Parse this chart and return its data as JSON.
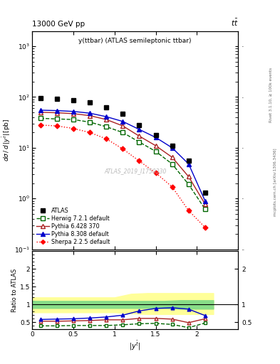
{
  "title_top": "13000 GeV pp",
  "title_right": "tt͟",
  "annotation": "y(ttbar) (ATLAS semileptonic ttbar)",
  "watermark": "ATLAS_2019_I1750330",
  "rivet_label": "Rivet 3.1.10, ≥ 100k events",
  "mcplots_label": "mcplots.cern.ch [arXiv:1306.3436]",
  "xlabel": "|y^{tbar}|",
  "xlim": [
    0.0,
    2.5
  ],
  "ylim_main": [
    0.1,
    2000
  ],
  "ylim_ratio": [
    0.3,
    2.5
  ],
  "atlas_x": [
    0.1,
    0.3,
    0.5,
    0.7,
    0.9,
    1.1,
    1.3,
    1.5,
    1.7,
    1.9,
    2.1
  ],
  "atlas_y": [
    95,
    92,
    87,
    78,
    63,
    47,
    28,
    18,
    11,
    5.5,
    1.3
  ],
  "herwig_x": [
    0.1,
    0.3,
    0.5,
    0.7,
    0.9,
    1.1,
    1.3,
    1.5,
    1.7,
    1.9,
    2.1
  ],
  "herwig_y": [
    38,
    37,
    36,
    32,
    26,
    20,
    13,
    8.5,
    4.8,
    1.9,
    0.62
  ],
  "pythia6_x": [
    0.1,
    0.3,
    0.5,
    0.7,
    0.9,
    1.1,
    1.3,
    1.5,
    1.7,
    1.9,
    2.1
  ],
  "pythia6_y": [
    50,
    49,
    47,
    43,
    36,
    27,
    17,
    11,
    6.5,
    2.7,
    0.78
  ],
  "pythia8_x": [
    0.1,
    0.3,
    0.5,
    0.7,
    0.9,
    1.1,
    1.3,
    1.5,
    1.7,
    1.9,
    2.1
  ],
  "pythia8_y": [
    55,
    54,
    52,
    48,
    41,
    33,
    23,
    16,
    10,
    4.8,
    0.9
  ],
  "sherpa_x": [
    0.1,
    0.3,
    0.5,
    0.7,
    0.9,
    1.1,
    1.3,
    1.5,
    1.7,
    1.9,
    2.1
  ],
  "sherpa_y": [
    28,
    27,
    24,
    20,
    15,
    9.5,
    5.5,
    3.2,
    1.7,
    0.58,
    0.27
  ],
  "ratio_x": [
    0.1,
    0.3,
    0.5,
    0.7,
    0.9,
    1.1,
    1.3,
    1.5,
    1.7,
    1.9,
    2.1
  ],
  "ratio_herwig": [
    0.4,
    0.4,
    0.41,
    0.41,
    0.41,
    0.43,
    0.46,
    0.47,
    0.44,
    0.35,
    0.48
  ],
  "ratio_pythia6": [
    0.53,
    0.53,
    0.54,
    0.55,
    0.57,
    0.57,
    0.61,
    0.61,
    0.59,
    0.49,
    0.6
  ],
  "ratio_pythia8": [
    0.58,
    0.59,
    0.6,
    0.62,
    0.65,
    0.7,
    0.82,
    0.89,
    0.91,
    0.87,
    0.69
  ],
  "band_x": [
    0.0,
    0.2,
    0.4,
    0.6,
    0.8,
    1.0,
    1.2,
    1.4,
    1.6,
    1.8,
    2.0,
    2.2
  ],
  "band_green_hi": [
    1.1,
    1.1,
    1.1,
    1.1,
    1.1,
    1.1,
    1.1,
    1.1,
    1.1,
    1.12,
    1.12,
    1.12
  ],
  "band_green_lo": [
    0.9,
    0.9,
    0.9,
    0.9,
    0.9,
    0.9,
    0.9,
    0.9,
    0.9,
    0.88,
    0.88,
    0.88
  ],
  "band_yellow_hi": [
    1.2,
    1.2,
    1.2,
    1.2,
    1.2,
    1.2,
    1.3,
    1.32,
    1.32,
    1.32,
    1.32,
    1.32
  ],
  "band_yellow_lo": [
    0.78,
    0.78,
    0.78,
    0.78,
    0.78,
    0.78,
    0.75,
    0.73,
    0.73,
    0.73,
    0.73,
    0.73
  ],
  "color_atlas": "#000000",
  "color_herwig": "#006600",
  "color_pythia6": "#aa2222",
  "color_pythia8": "#0000cc",
  "color_sherpa": "#ff0000",
  "color_band_green": "#88dd88",
  "color_band_yellow": "#ffff99"
}
